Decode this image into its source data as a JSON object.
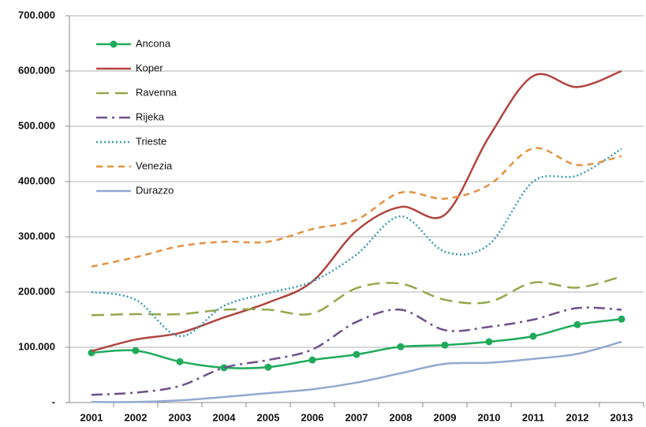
{
  "chart_data": {
    "type": "line",
    "categories": [
      "2001",
      "2002",
      "2003",
      "2004",
      "2005",
      "2006",
      "2007",
      "2008",
      "2009",
      "2010",
      "2011",
      "2012",
      "2013"
    ],
    "ylim": [
      0,
      700000
    ],
    "yticks": [
      {
        "value": 0,
        "label": "-"
      },
      {
        "value": 100000,
        "label": "100.000"
      },
      {
        "value": 200000,
        "label": "200.000"
      },
      {
        "value": 300000,
        "label": "300.000"
      },
      {
        "value": 400000,
        "label": "400.000"
      },
      {
        "value": 500000,
        "label": "500.000"
      },
      {
        "value": 600000,
        "label": "600.000"
      },
      {
        "value": 700000,
        "label": "700.000"
      }
    ],
    "grid": true,
    "legend": "top-left",
    "series": [
      {
        "name": "Ancona",
        "color": "#1faa5a",
        "dash": "solid",
        "marker": "circle",
        "values": [
          90000,
          94000,
          74000,
          63000,
          64000,
          77000,
          87000,
          101000,
          104000,
          110000,
          120000,
          141000,
          151000
        ]
      },
      {
        "name": "Koper",
        "color": "#b0443e",
        "dash": "solid",
        "values": [
          93000,
          114000,
          126000,
          154000,
          181000,
          219000,
          311000,
          354000,
          340000,
          481000,
          591000,
          571000,
          600000
        ]
      },
      {
        "name": "Ravenna",
        "color": "#93a84d",
        "dash": "long-dash",
        "values": [
          158000,
          160000,
          160000,
          168000,
          168000,
          161000,
          207000,
          215000,
          186000,
          182000,
          217000,
          208000,
          228000
        ]
      },
      {
        "name": "Rijeka",
        "color": "#6f4f8c",
        "dash": "dash-dot",
        "values": [
          14000,
          18000,
          30000,
          63000,
          77000,
          96000,
          146000,
          168000,
          131000,
          137000,
          150000,
          171000,
          168000
        ]
      },
      {
        "name": "Trieste",
        "color": "#3b9bb8",
        "dash": "dotted",
        "values": [
          200000,
          186000,
          120000,
          175000,
          198000,
          219000,
          268000,
          337000,
          273000,
          286000,
          400000,
          411000,
          459000
        ]
      },
      {
        "name": "Venezia",
        "color": "#e3913f",
        "dash": "dashed",
        "values": [
          246000,
          263000,
          283000,
          291000,
          291000,
          314000,
          331000,
          380000,
          369000,
          394000,
          460000,
          430000,
          446000
        ]
      },
      {
        "name": "Durazzo",
        "color": "#93a9cf",
        "dash": "solid",
        "values": [
          1000,
          1000,
          4000,
          10000,
          17000,
          24000,
          36000,
          53000,
          70000,
          72000,
          79000,
          88000,
          110000
        ]
      }
    ]
  }
}
